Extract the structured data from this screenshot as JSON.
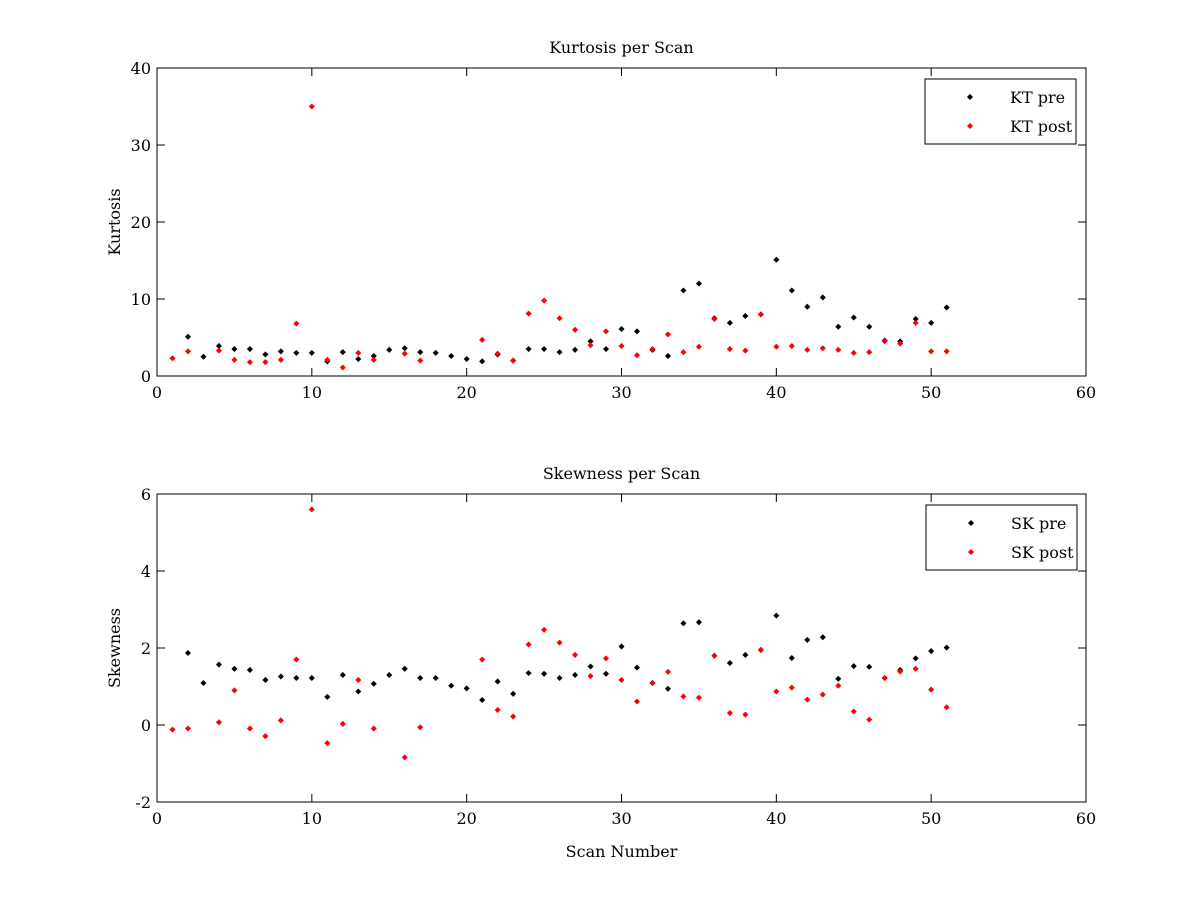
{
  "chart_data": [
    {
      "type": "scatter",
      "title": "Kurtosis per Scan",
      "xlabel": "",
      "ylabel": "Kurtosis",
      "xlim": [
        0,
        60
      ],
      "ylim": [
        0,
        40
      ],
      "xticks": [
        "0",
        "10",
        "20",
        "30",
        "40",
        "50",
        "60"
      ],
      "yticks": [
        "0",
        "10",
        "20",
        "30",
        "40"
      ],
      "legend_position": "top-right",
      "series": [
        {
          "name": "KT pre",
          "color": "#000000",
          "x": [
            2,
            3,
            4,
            5,
            6,
            7,
            8,
            9,
            10,
            11,
            12,
            13,
            14,
            15,
            16,
            17,
            18,
            19,
            20,
            21,
            22,
            23,
            24,
            25,
            26,
            27,
            28,
            29,
            30,
            31,
            32,
            33,
            34,
            35,
            36,
            37,
            38,
            39,
            40,
            41,
            42,
            43,
            44,
            45,
            46,
            47,
            48,
            49,
            50,
            51
          ],
          "y": [
            5.1,
            2.5,
            3.9,
            3.5,
            3.5,
            2.8,
            3.2,
            3.0,
            3.0,
            1.9,
            3.1,
            2.2,
            2.6,
            3.4,
            3.6,
            3.1,
            3.0,
            2.6,
            2.2,
            1.9,
            2.8,
            2.0,
            3.5,
            3.5,
            3.1,
            3.4,
            4.5,
            3.5,
            6.1,
            5.8,
            3.4,
            2.6,
            11.1,
            12.0,
            7.5,
            6.9,
            7.8,
            8.0,
            15.1,
            11.1,
            9.0,
            10.2,
            6.4,
            7.6,
            6.4,
            4.6,
            4.5,
            7.4,
            6.9,
            8.9
          ]
        },
        {
          "name": "KT post",
          "color": "#ff0000",
          "x": [
            1,
            2,
            4,
            5,
            6,
            7,
            8,
            9,
            10,
            11,
            12,
            13,
            14,
            16,
            17,
            21,
            22,
            23,
            24,
            25,
            26,
            27,
            28,
            29,
            30,
            31,
            32,
            33,
            34,
            35,
            36,
            37,
            38,
            39,
            40,
            41,
            42,
            43,
            44,
            45,
            46,
            47,
            48,
            49,
            50,
            51
          ],
          "y": [
            2.3,
            3.2,
            3.3,
            2.1,
            1.8,
            1.8,
            2.1,
            6.8,
            35.0,
            2.1,
            1.1,
            3.0,
            2.1,
            2.9,
            2.0,
            4.7,
            2.9,
            2.0,
            8.1,
            9.8,
            7.5,
            6.0,
            4.0,
            5.8,
            3.9,
            2.7,
            3.5,
            5.4,
            3.1,
            3.8,
            7.4,
            3.5,
            3.3,
            8.0,
            3.8,
            3.9,
            3.4,
            3.6,
            3.4,
            3.0,
            3.1,
            4.5,
            4.2,
            6.9,
            3.2,
            3.2
          ]
        }
      ]
    },
    {
      "type": "scatter",
      "title": "Skewness per Scan",
      "xlabel": "Scan Number",
      "ylabel": "Skewness",
      "xlim": [
        0,
        60
      ],
      "ylim": [
        -2,
        6
      ],
      "xticks": [
        "0",
        "10",
        "20",
        "30",
        "40",
        "50",
        "60"
      ],
      "yticks": [
        "-2",
        "0",
        "2",
        "4",
        "6"
      ],
      "legend_position": "top-right",
      "series": [
        {
          "name": "SK pre",
          "color": "#000000",
          "x": [
            2,
            3,
            4,
            5,
            6,
            7,
            8,
            9,
            10,
            11,
            12,
            13,
            14,
            15,
            16,
            17,
            18,
            19,
            20,
            21,
            22,
            23,
            24,
            25,
            26,
            27,
            28,
            29,
            30,
            31,
            32,
            33,
            34,
            35,
            36,
            37,
            38,
            39,
            40,
            41,
            42,
            43,
            44,
            45,
            46,
            47,
            48,
            49,
            50,
            51
          ],
          "y": [
            1.87,
            1.09,
            1.57,
            1.46,
            1.43,
            1.17,
            1.26,
            1.22,
            1.22,
            0.73,
            1.3,
            0.87,
            1.07,
            1.3,
            1.46,
            1.22,
            1.22,
            1.02,
            0.95,
            0.65,
            1.13,
            0.81,
            1.35,
            1.33,
            1.22,
            1.3,
            1.52,
            1.33,
            2.04,
            1.49,
            1.09,
            0.94,
            2.64,
            2.67,
            1.8,
            1.61,
            1.82,
            1.95,
            2.84,
            1.74,
            2.21,
            2.28,
            1.2,
            1.53,
            1.51,
            1.22,
            1.43,
            1.73,
            1.92,
            2.01
          ]
        },
        {
          "name": "SK post",
          "color": "#ff0000",
          "x": [
            1,
            2,
            4,
            5,
            6,
            7,
            8,
            9,
            10,
            11,
            12,
            13,
            14,
            16,
            17,
            21,
            22,
            23,
            24,
            25,
            26,
            27,
            28,
            29,
            30,
            31,
            32,
            33,
            34,
            35,
            36,
            37,
            38,
            39,
            40,
            41,
            42,
            43,
            44,
            45,
            46,
            47,
            48,
            49,
            50,
            51
          ],
          "y": [
            -0.12,
            -0.09,
            0.07,
            0.9,
            -0.09,
            -0.29,
            0.12,
            1.7,
            5.6,
            -0.47,
            0.03,
            1.17,
            -0.09,
            -0.84,
            -0.06,
            1.7,
            0.39,
            0.22,
            2.09,
            2.47,
            2.14,
            1.82,
            1.27,
            1.73,
            1.17,
            0.61,
            1.09,
            1.38,
            0.74,
            0.71,
            1.8,
            0.31,
            0.27,
            1.95,
            0.87,
            0.97,
            0.66,
            0.79,
            1.02,
            0.35,
            0.14,
            1.22,
            1.39,
            1.46,
            0.92,
            0.46
          ]
        }
      ]
    }
  ]
}
